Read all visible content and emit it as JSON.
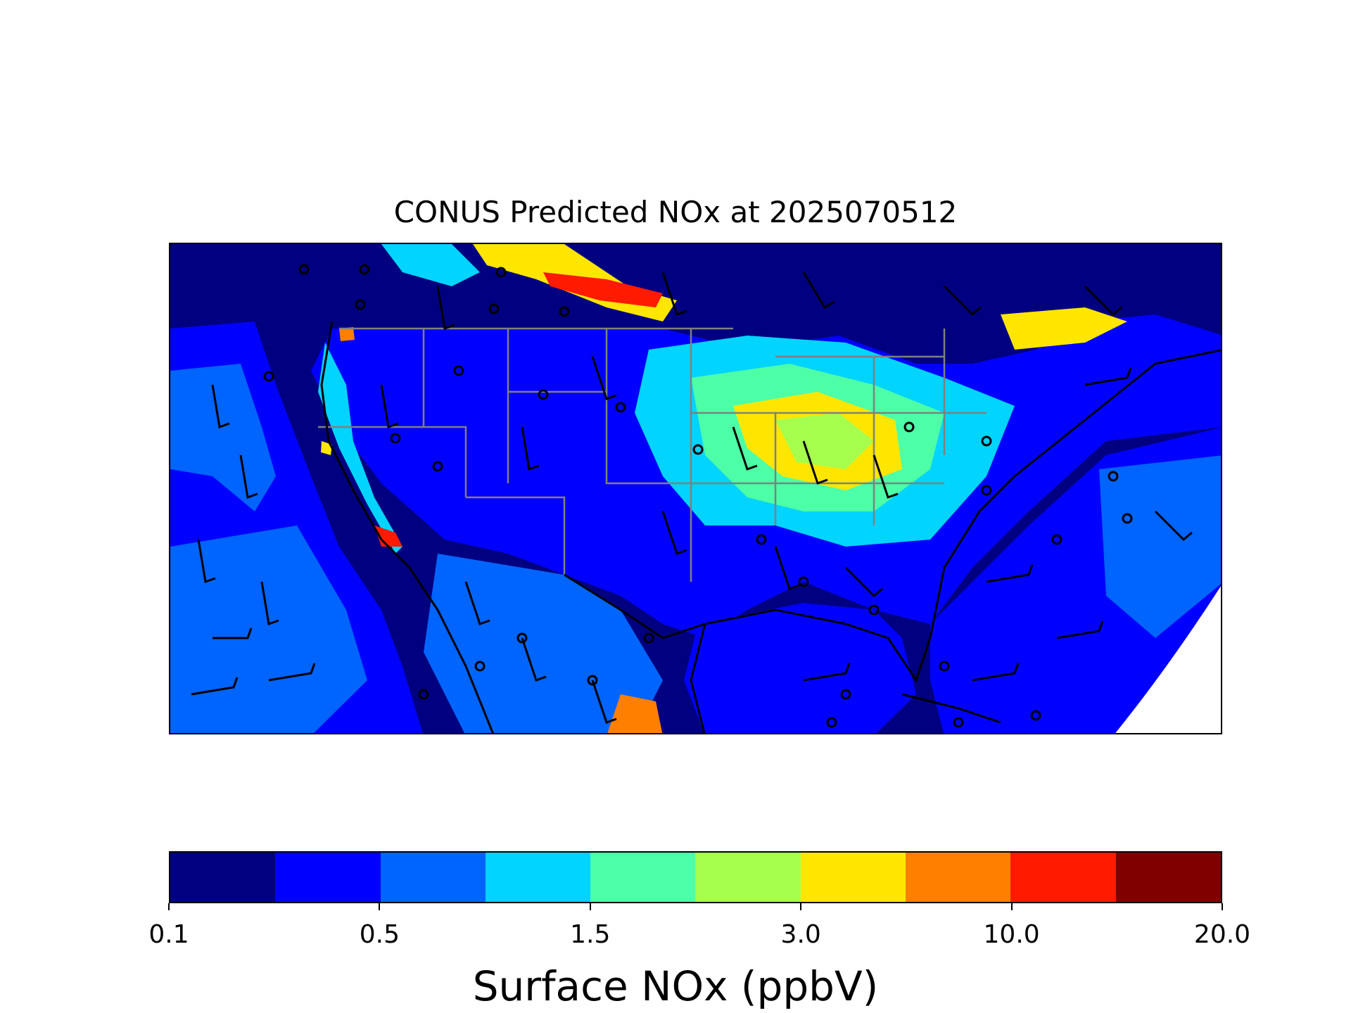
{
  "title": "CONUS Predicted NOx at 2025070512",
  "colorbar": {
    "label": "Surface NOx (ppbV)",
    "ticks": [
      "0.1",
      "0.5",
      "1.5",
      "3.0",
      "10.0",
      "20.0"
    ],
    "colors": [
      "#000080",
      "#0000ff",
      "#0064ff",
      "#00d4ff",
      "#4dffa6",
      "#a6ff4d",
      "#ffe600",
      "#ff8000",
      "#ff1a00",
      "#800000"
    ]
  },
  "map": {
    "region": "CONUS",
    "variable": "Surface NOx",
    "overlays": [
      "state-boundaries",
      "coastlines",
      "wind-barbs",
      "calm-wind-circles"
    ],
    "no_data_color": "#ffffff"
  }
}
